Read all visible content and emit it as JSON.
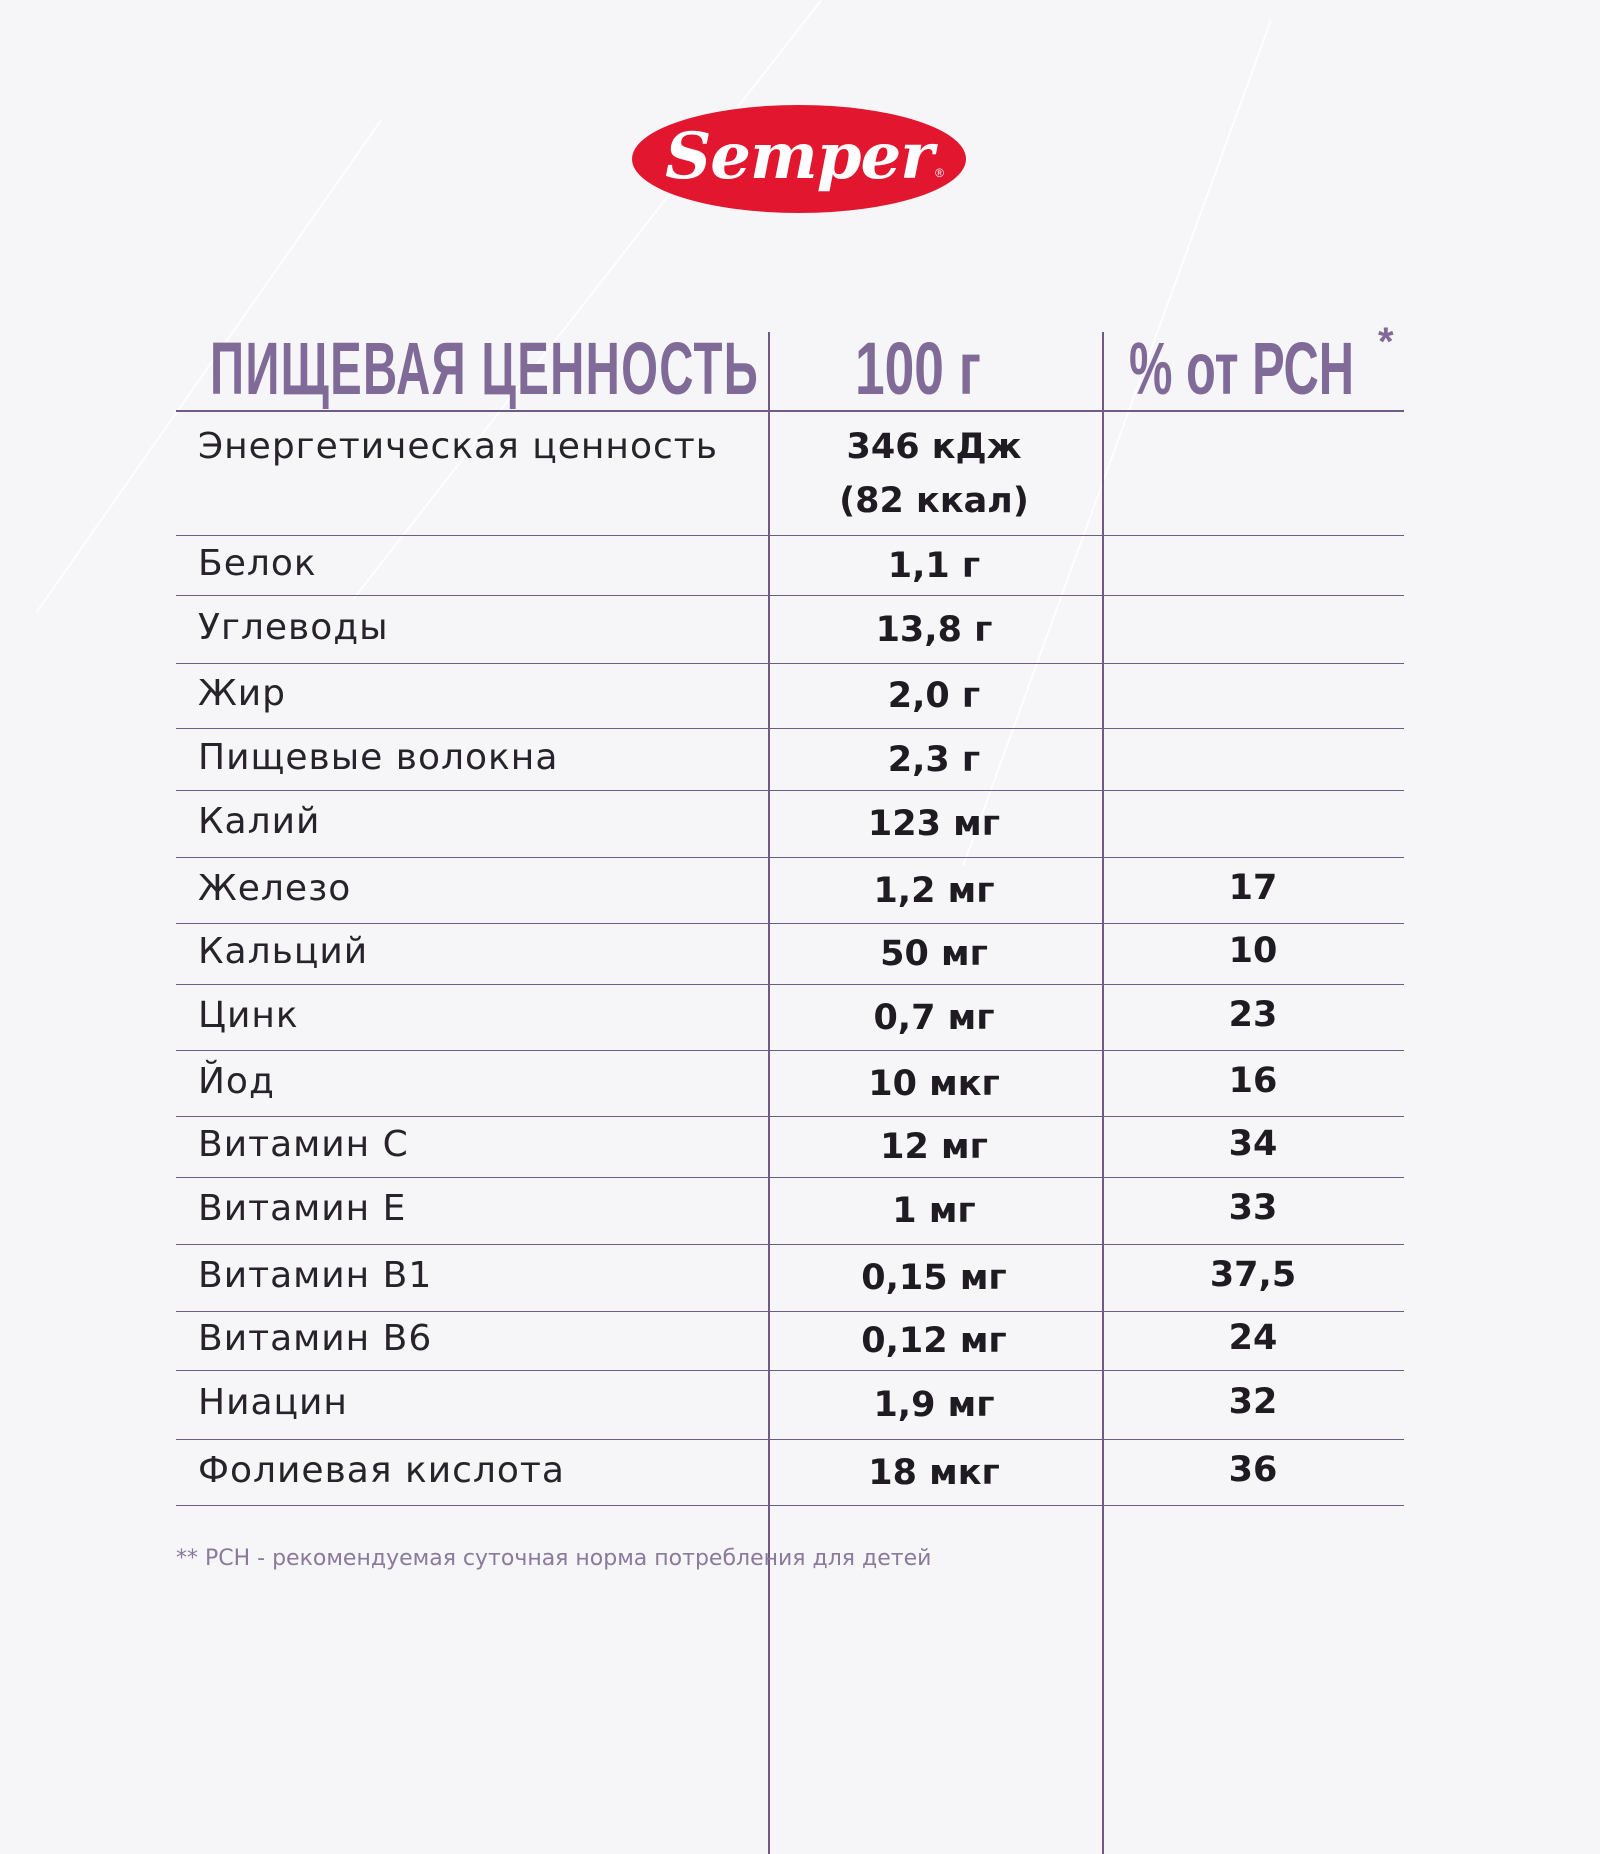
{
  "brand": {
    "name": "Semper",
    "registered_mark": "®"
  },
  "table": {
    "headers": {
      "name": "ПИЩЕВАЯ ЦЕННОСТЬ",
      "per100": "100 г",
      "pct": "% от РСН",
      "pct_mark": "*"
    },
    "rows": [
      {
        "name": "Энергетическая ценность",
        "value": "346 кДж",
        "value2": "(82 ккал)",
        "pct": ""
      },
      {
        "name": "Белок",
        "value": "1,1 г",
        "pct": ""
      },
      {
        "name": "Углеводы",
        "value": "13,8 г",
        "pct": ""
      },
      {
        "name": "Жир",
        "value": "2,0 г",
        "pct": ""
      },
      {
        "name": "Пищевые волокна",
        "value": "2,3 г",
        "pct": ""
      },
      {
        "name": "Калий",
        "value": "123 мг",
        "pct": ""
      },
      {
        "name": "Железо",
        "value": "1,2 мг",
        "pct": "17"
      },
      {
        "name": "Кальций",
        "value": "50 мг",
        "pct": "10"
      },
      {
        "name": "Цинк",
        "value": "0,7 мг",
        "pct": "23"
      },
      {
        "name": "Йод",
        "value": "10 мкг",
        "pct": "16"
      },
      {
        "name": "Витамин С",
        "value": "12 мг",
        "pct": "34"
      },
      {
        "name": "Витамин Е",
        "value": "1 мг",
        "pct": "33"
      },
      {
        "name": "Витамин В1",
        "value": "0,15 мг",
        "pct": "37,5"
      },
      {
        "name": "Витамин В6",
        "value": "0,12 мг",
        "pct": "24"
      },
      {
        "name": "Ниацин",
        "value": "1,9 мг",
        "pct": "32"
      },
      {
        "name": "Фолиевая кислота",
        "value": "18 мкг",
        "pct": "36"
      }
    ]
  },
  "footnote": "** РСН - рекомендуемая суточная норма потребления для детей",
  "colors": {
    "brand_red": "#e3162f",
    "accent_purple": "#806b98",
    "background": "#f6f5f7"
  }
}
